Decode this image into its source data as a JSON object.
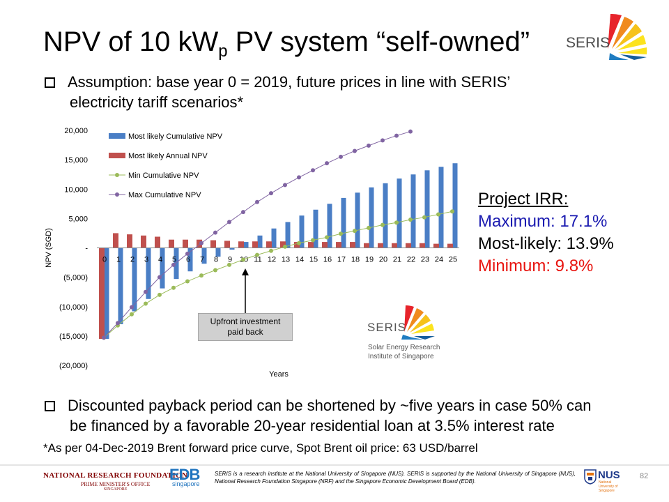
{
  "slide": {
    "title_prefix": "NPV of 10 kW",
    "title_sub": "p",
    "title_suffix": " PV system “self-owned”",
    "logo_text": "SERIS",
    "bullet1": "Assumption: base year 0 = 2019, future prices in line with SERIS’",
    "bullet1_cont": "electricity tariff scenarios*",
    "bullet2": "Discounted payback period can be shortened by ~five years in case 50% can",
    "bullet2_cont": "be financed by a favorable 20-year residential loan at 3.5% interest rate",
    "footnote": "*As per 04-Dec-2019 Brent forward price curve, Spot Brent oil price: 63 USD/barrel",
    "page_number": "82"
  },
  "irr": {
    "heading": "Project IRR:",
    "maximum": "Maximum: 17.1%",
    "most_likely": "Most-likely: 13.9%",
    "minimum": "Minimum: 9.8%",
    "colors": {
      "maximum": "#1a1ab0",
      "most_likely": "#000000",
      "minimum": "#e8130e"
    }
  },
  "callout": {
    "line1": "Upfront investment",
    "line2": "paid back"
  },
  "seris_logo": {
    "name": "SERIS",
    "sub1": "Solar Energy Research",
    "sub2": "Institute of Singapore",
    "colors": [
      "#e7242b",
      "#f08a1e",
      "#f6c21a",
      "#fce31d",
      "#1f7cc1",
      "#155e9c"
    ]
  },
  "footer": {
    "nrf_line1": "NATIONAL RESEARCH FOUNDATION",
    "nrf_line2": "PRIME MINISTER'S OFFICE",
    "nrf_line3": "SINGAPORE",
    "edb_main": "EDB",
    "edb_sub": "singapore",
    "text": "SERIS is a research institute at the National University of Singapore (NUS). SERIS is supported by the National University of Singapore (NUS), National Research Foundation Singapore (NRF) and the Singapore Economic Development Board (EDB).",
    "nus_name": "NUS",
    "nus_sub": "National University of Singapore"
  },
  "chart_data": {
    "type": "bar",
    "xlabel": "Years",
    "ylabel": "NPV (SGD)",
    "ylim": [
      -20000,
      20000
    ],
    "yticks": [
      20000,
      15000,
      10000,
      5000,
      0,
      -5000,
      -10000,
      -15000,
      -20000
    ],
    "ytick_labels": [
      "20,000",
      "15,000",
      "10,000",
      "5,000",
      "-",
      "(5,000)",
      "(10,000)",
      "(15,000)",
      "(20,000)"
    ],
    "categories": [
      "0",
      "1",
      "2",
      "3",
      "4",
      "5",
      "6",
      "7",
      "8",
      "9",
      "10",
      "11",
      "12",
      "13",
      "14",
      "15",
      "16",
      "17",
      "18",
      "19",
      "20",
      "21",
      "22",
      "23",
      "24",
      "25"
    ],
    "grid": false,
    "legend_position": "top-left",
    "series": [
      {
        "name": "Most likely Cumulative NPV",
        "kind": "bar",
        "color": "#4a7ec5",
        "values": [
          -15500,
          -13000,
          -10800,
          -8700,
          -6900,
          -5300,
          -4000,
          -2700,
          -1500,
          -300,
          1000,
          2100,
          3300,
          4400,
          5500,
          6500,
          7500,
          8500,
          9400,
          10300,
          11000,
          11800,
          12500,
          13200,
          13800,
          14400
        ]
      },
      {
        "name": "Most likely Annual NPV",
        "kind": "bar",
        "color": "#c0504d",
        "values": [
          -15500,
          2500,
          2300,
          2100,
          1900,
          1400,
          1400,
          1400,
          1300,
          1200,
          1100,
          1100,
          1100,
          1100,
          1000,
          1000,
          1000,
          1000,
          1000,
          800,
          800,
          800,
          800,
          800,
          700,
          700
        ]
      },
      {
        "name": "Min Cumulative NPV",
        "kind": "line",
        "color": "#9bbb59",
        "values": [
          -15300,
          -13200,
          -11300,
          -9500,
          -8000,
          -6800,
          -5700,
          -4700,
          -3800,
          -2900,
          -2000,
          -1200,
          -500,
          200,
          800,
          1300,
          1800,
          2400,
          2900,
          3400,
          3900,
          4300,
          4800,
          5200,
          5700,
          6200
        ]
      },
      {
        "name": "Max Cumulative NPV",
        "kind": "line",
        "color": "#8064a2",
        "values": [
          -15300,
          -12800,
          -10100,
          -7500,
          -5000,
          -2900,
          -1000,
          800,
          2600,
          4400,
          6100,
          7800,
          9300,
          10700,
          12000,
          13200,
          14400,
          15500,
          16500,
          17400,
          18300,
          19100,
          19800,
          20600,
          21400,
          22100
        ]
      }
    ]
  }
}
